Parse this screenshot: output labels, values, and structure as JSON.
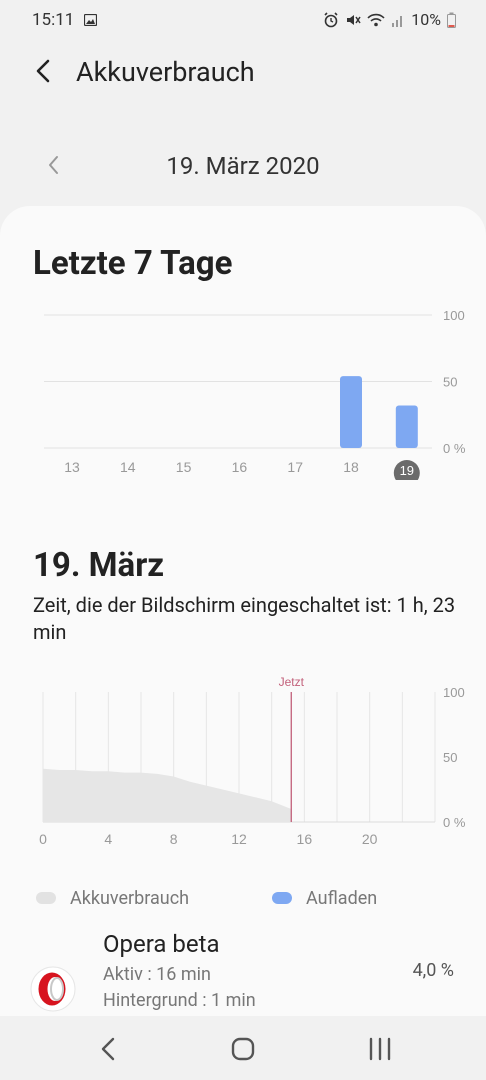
{
  "status": {
    "time": "15:11",
    "battery": "10%"
  },
  "icons": {
    "image": "image-icon",
    "alarm": "alarm-icon",
    "mute": "mute-icon",
    "wifi": "wifi-icon",
    "signal": "signal-icon",
    "battery": "battery-icon",
    "back": "back-arrow-icon",
    "prev": "chevron-left-icon"
  },
  "appbar": {
    "title": "Akkuverbrauch"
  },
  "date_nav": {
    "date": "19. März 2020"
  },
  "weekly": {
    "heading": "Letzte 7 Tage"
  },
  "daily": {
    "heading": "19. März",
    "screen_time": "Zeit, die der Bildschirm eingeschaltet ist: 1 h, 23 min"
  },
  "legend": {
    "usage": "Akkuverbrauch",
    "charging": "Aufladen"
  },
  "app": {
    "name": "Opera beta",
    "active": "Aktiv : 16 min",
    "background": "Hintergrund : 1 min",
    "percent": "4,0 %"
  },
  "colors": {
    "bar": "#7ea8f2",
    "area": "#e6e6e6",
    "now_line": "#c2607a",
    "selected_day_bg": "#6b6b6b"
  },
  "chart_data": [
    {
      "type": "bar",
      "title": "Letzte 7 Tage",
      "categories": [
        "13",
        "14",
        "15",
        "16",
        "17",
        "18",
        "19"
      ],
      "values": [
        0,
        0,
        0,
        0,
        0,
        54,
        32
      ],
      "ylim": [
        0,
        100
      ],
      "y_ticks": [
        "0 %",
        "50",
        "100"
      ],
      "selected": "19",
      "series": [
        {
          "name": "Aufladen",
          "values": [
            0,
            0,
            0,
            0,
            0,
            54,
            32
          ]
        }
      ]
    },
    {
      "type": "area",
      "title": "19. März",
      "xlim": [
        0,
        24
      ],
      "x_ticks": [
        "0",
        "4",
        "8",
        "12",
        "16",
        "20"
      ],
      "ylim": [
        0,
        100
      ],
      "y_ticks": [
        "0 %",
        "50",
        "100"
      ],
      "now_label": "Jetzt",
      "now_x": 15.2,
      "series": [
        {
          "name": "Akkuverbrauch",
          "x": [
            0,
            1,
            2,
            3,
            4,
            5,
            6,
            7,
            8,
            9,
            10,
            11,
            12,
            13,
            14,
            15,
            15.2
          ],
          "y": [
            41,
            40,
            40,
            39,
            39,
            38,
            38,
            37,
            35,
            31,
            28,
            25,
            22,
            19,
            16,
            11,
            10
          ]
        }
      ]
    }
  ]
}
